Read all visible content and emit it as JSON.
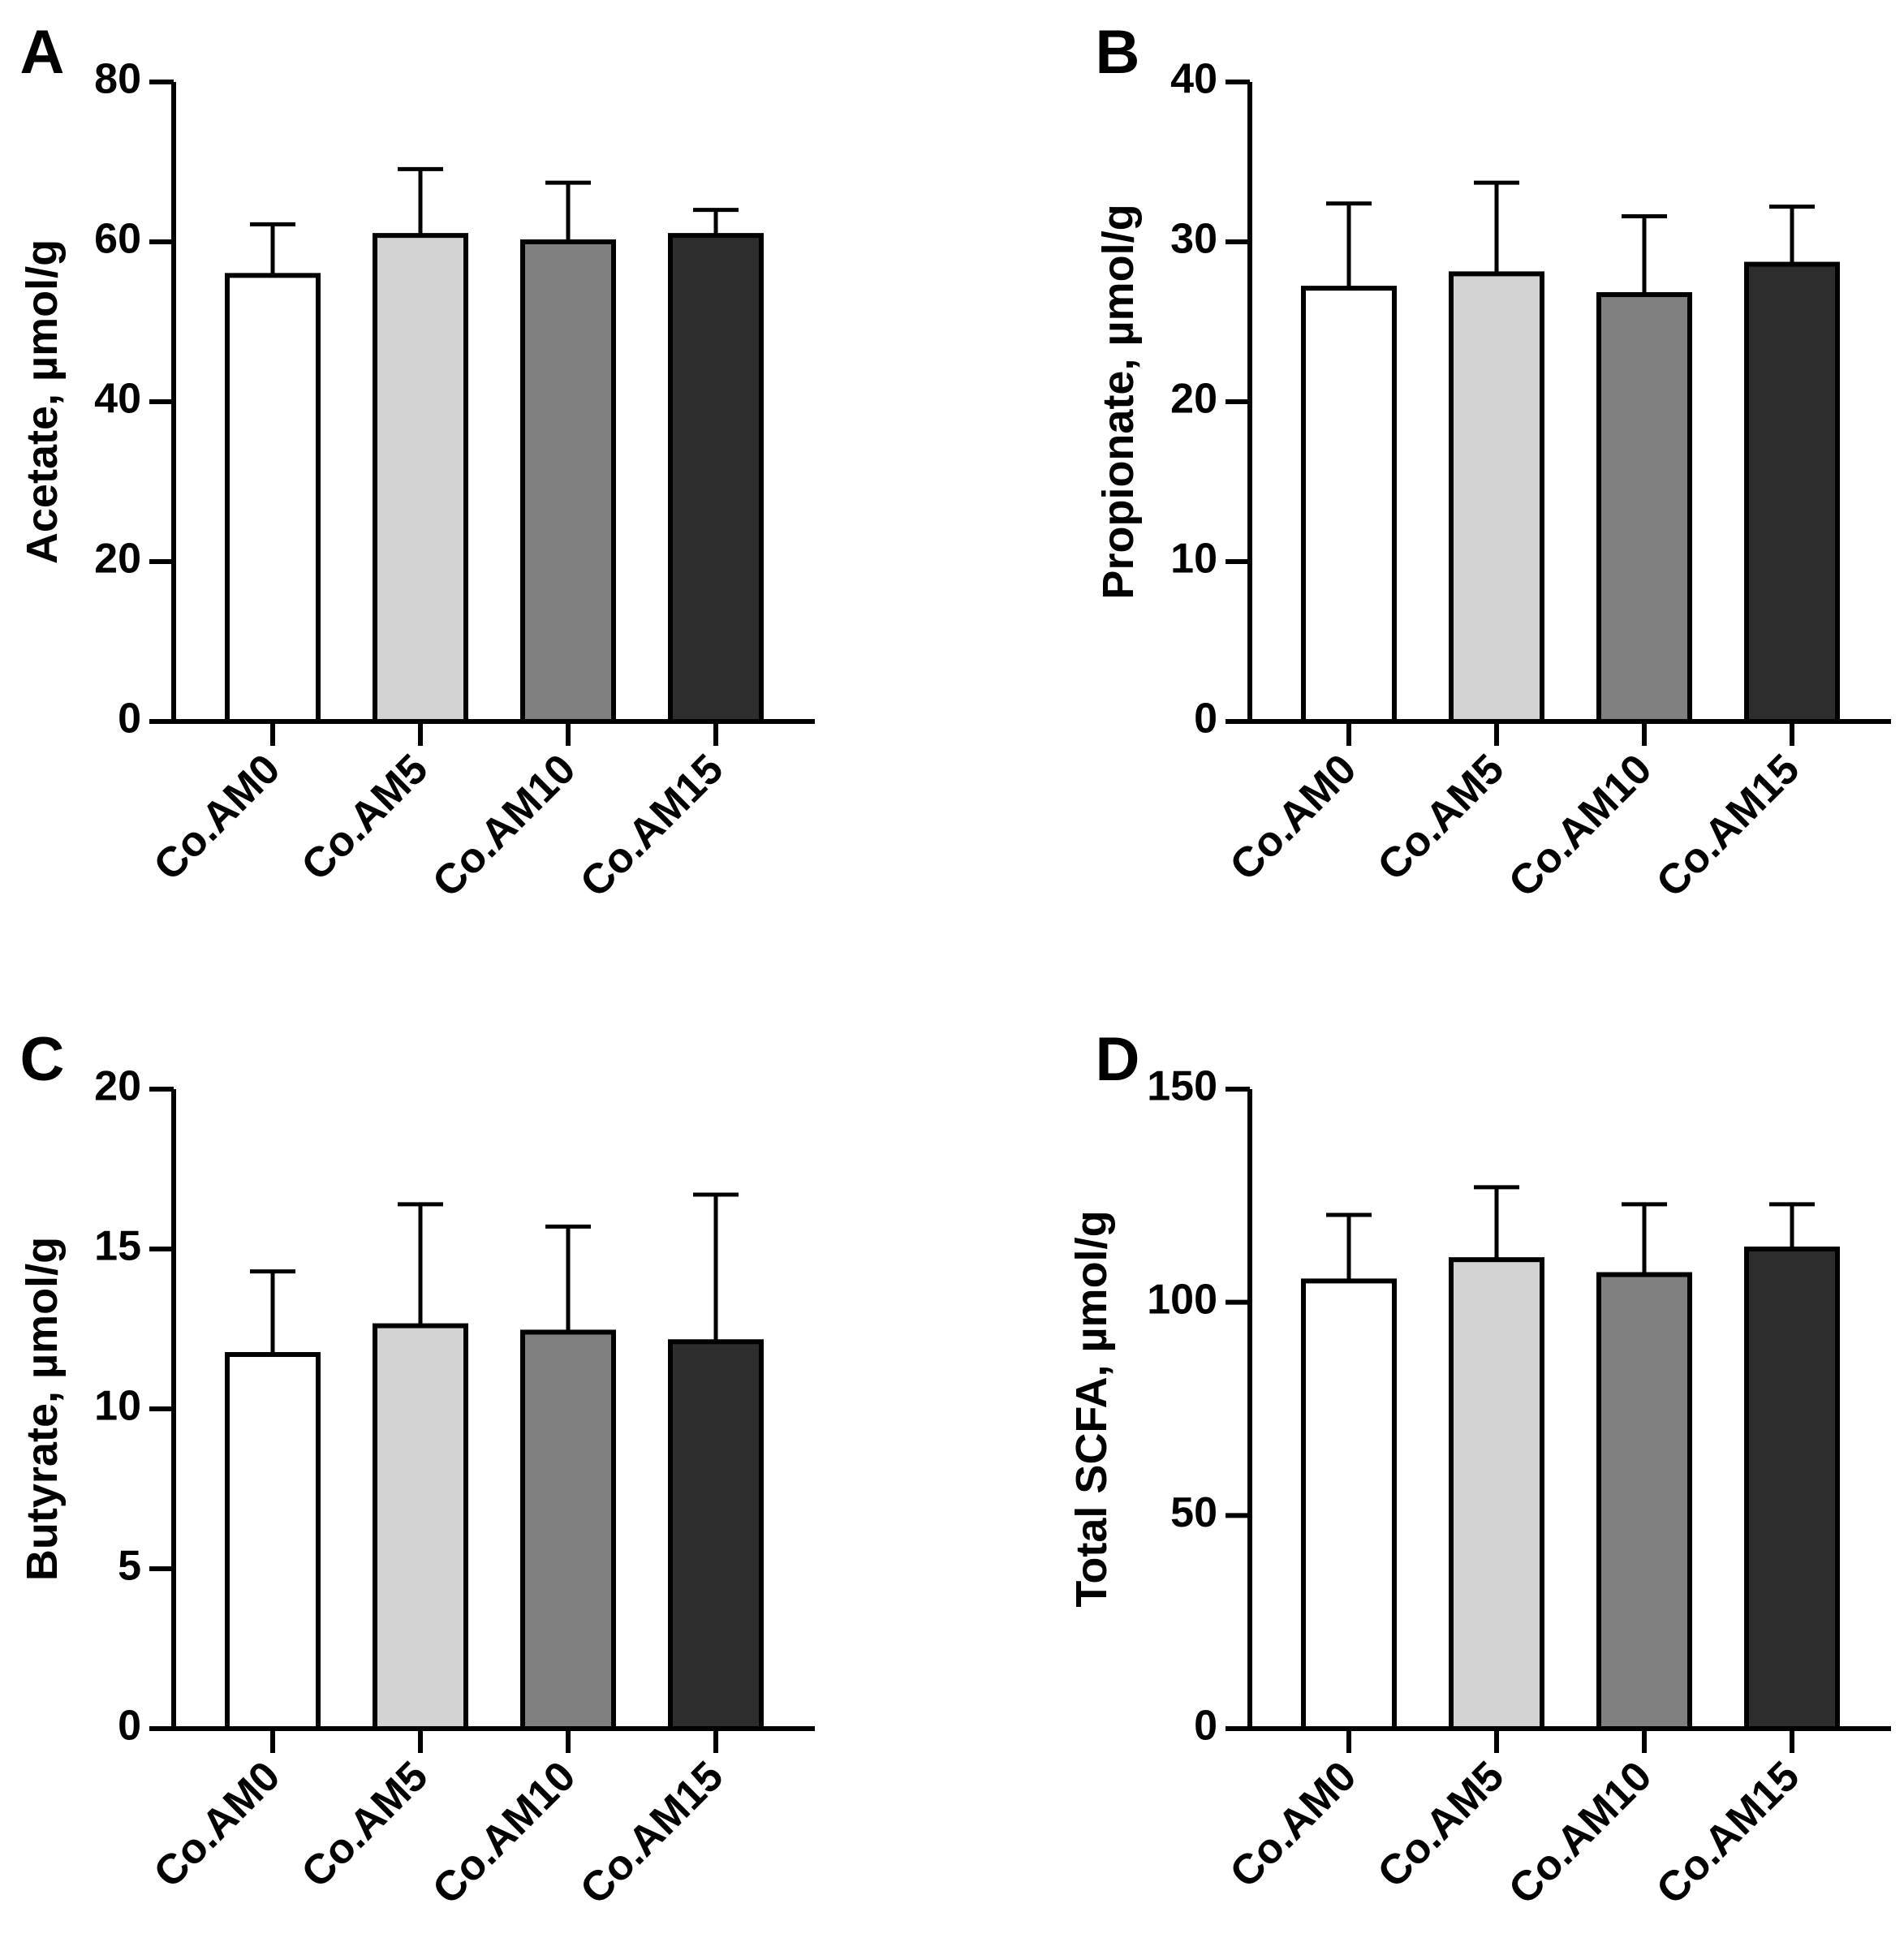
{
  "figure": {
    "background": "#ffffff",
    "axis_color": "#000000"
  },
  "bar_colors": [
    "#ffffff",
    "#d3d3d3",
    "#808080",
    "#2d2d2d"
  ],
  "chart_data": [
    {
      "panel": "A",
      "type": "bar",
      "title": "",
      "xlabel": "",
      "ylabel": "Acetate, µmol/g",
      "categories": [
        "Co.AM0",
        "Co.AM5",
        "Co.AM10",
        "Co.AM15"
      ],
      "values": [
        55.8,
        60.8,
        60.0,
        60.8
      ],
      "error_upper": [
        62.2,
        69.1,
        67.4,
        64.0
      ],
      "ylim": [
        0,
        80
      ],
      "yticks": [
        0,
        20,
        40,
        60,
        80
      ],
      "grid": false
    },
    {
      "panel": "B",
      "type": "bar",
      "title": "",
      "xlabel": "",
      "ylabel": "Propionate, µmol/g",
      "categories": [
        "Co.AM0",
        "Co.AM5",
        "Co.AM10",
        "Co.AM15"
      ],
      "values": [
        27.1,
        28.0,
        26.7,
        28.6
      ],
      "error_upper": [
        32.4,
        33.7,
        31.6,
        32.2
      ],
      "ylim": [
        0,
        40
      ],
      "yticks": [
        0,
        10,
        20,
        30,
        40
      ],
      "grid": false
    },
    {
      "panel": "C",
      "type": "bar",
      "title": "",
      "xlabel": "",
      "ylabel": "Butyrate, µmol/g",
      "categories": [
        "Co.AM0",
        "Co.AM5",
        "Co.AM10",
        "Co.AM15"
      ],
      "values": [
        11.7,
        12.6,
        12.4,
        12.1
      ],
      "error_upper": [
        14.3,
        16.4,
        15.7,
        16.7
      ],
      "ylim": [
        0,
        20
      ],
      "yticks": [
        0,
        5,
        10,
        15,
        20
      ],
      "grid": false
    },
    {
      "panel": "D",
      "type": "bar",
      "title": "",
      "xlabel": "",
      "ylabel": "Total SCFA, µmol/g",
      "categories": [
        "Co.AM0",
        "Co.AM5",
        "Co.AM10",
        "Co.AM15"
      ],
      "values": [
        105.0,
        110.0,
        106.5,
        112.5
      ],
      "error_upper": [
        120.5,
        127.0,
        123.0,
        123.0
      ],
      "ylim": [
        0,
        150
      ],
      "yticks": [
        0,
        50,
        100,
        150
      ],
      "grid": false
    }
  ]
}
